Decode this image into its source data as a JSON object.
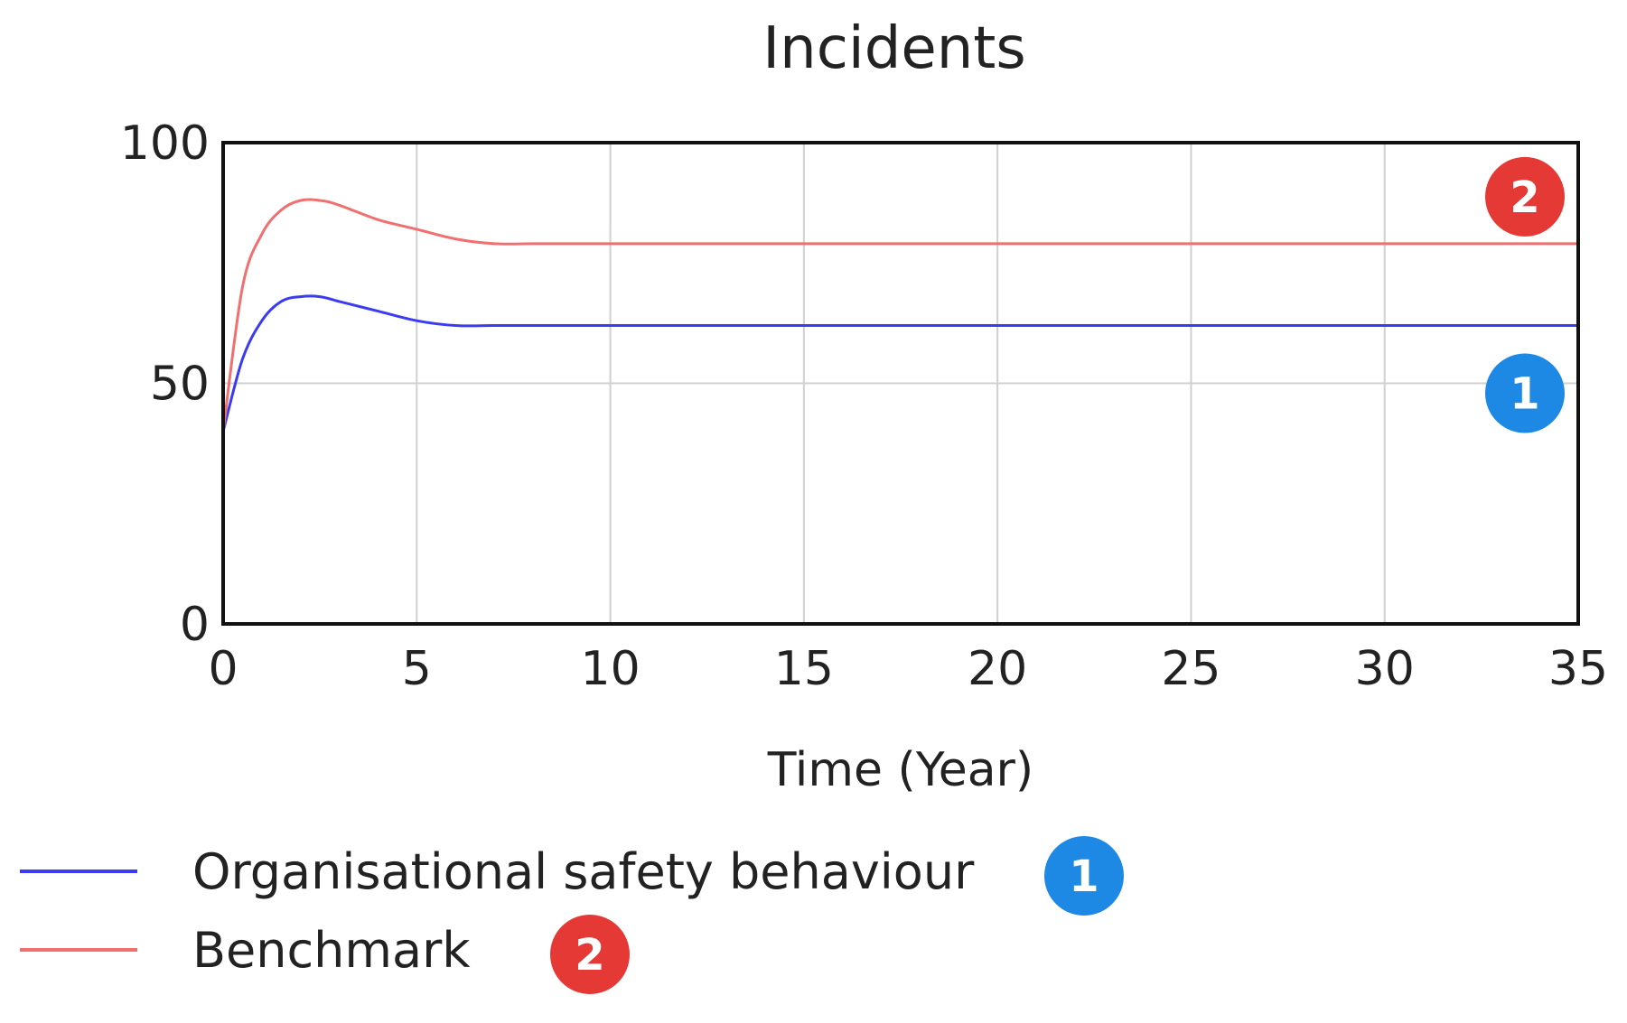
{
  "chart_data": {
    "type": "line",
    "title": "Incidents",
    "xlabel": "Time (Year)",
    "ylabel": "",
    "xlim": [
      0,
      35
    ],
    "ylim": [
      0,
      100
    ],
    "x_ticks": [
      "0",
      "5",
      "10",
      "15",
      "20",
      "25",
      "30",
      "35"
    ],
    "y_ticks": [
      "0",
      "50",
      "100"
    ],
    "grid": true,
    "legend_placement": "bottom-left",
    "series": [
      {
        "name": "Organisational safety behaviour",
        "marker": "1",
        "color": "#3b3bf2",
        "badge_color": "#1e88e5",
        "x": [
          0,
          0.5,
          1,
          1.5,
          2,
          2.5,
          3,
          4,
          5,
          6,
          7,
          8,
          9,
          10,
          15,
          20,
          25,
          30,
          35
        ],
        "y": [
          40,
          55,
          63,
          67,
          68,
          68,
          67,
          65,
          63,
          62,
          62,
          62,
          62,
          62,
          62,
          62,
          62,
          62,
          62
        ]
      },
      {
        "name": "Benchmark",
        "marker": "2",
        "color": "#f07070",
        "badge_color": "#e53935",
        "x": [
          0,
          0.5,
          1,
          1.5,
          2,
          2.5,
          3,
          4,
          5,
          6,
          7,
          8,
          9,
          10,
          15,
          20,
          25,
          30,
          35
        ],
        "y": [
          40,
          70,
          81,
          86,
          88,
          88,
          87,
          84,
          82,
          80,
          79,
          79,
          79,
          79,
          79,
          79,
          79,
          79,
          79
        ]
      }
    ]
  }
}
